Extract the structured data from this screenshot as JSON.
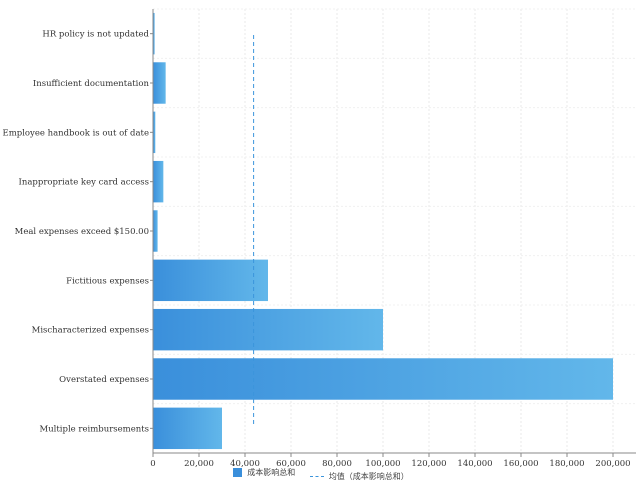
{
  "chart_data": {
    "type": "bar",
    "orientation": "horizontal",
    "categories": [
      "HR policy is not updated",
      "Insufficient documentation",
      "Employee handbook is out of date",
      "Inappropriate key card access",
      "Meal expenses exceed $150.00",
      "Fictitious expenses",
      "Mischaracterized expenses",
      "Overstated expenses",
      "Multiple reimbursements"
    ],
    "series": [
      {
        "name": "成本影响总和",
        "values": [
          700,
          5500,
          1000,
          4500,
          2000,
          50000,
          100000,
          200000,
          30000
        ]
      }
    ],
    "reference_line": {
      "label": "均值（成本影响总和）",
      "value": 43744
    },
    "x_ticks": [
      "0",
      "20,000",
      "40,000",
      "60,000",
      "80,000",
      "100,000",
      "120,000",
      "140,000",
      "160,000",
      "180,000",
      "200,000"
    ],
    "xlim": [
      0,
      210000
    ],
    "grid": true,
    "legend_position": "bottom",
    "colors": {
      "bar_start": "#3a8fdb",
      "bar_end": "#62b7ea",
      "mean_line": "#3b95dc",
      "grid": "#e8e8e8"
    }
  }
}
